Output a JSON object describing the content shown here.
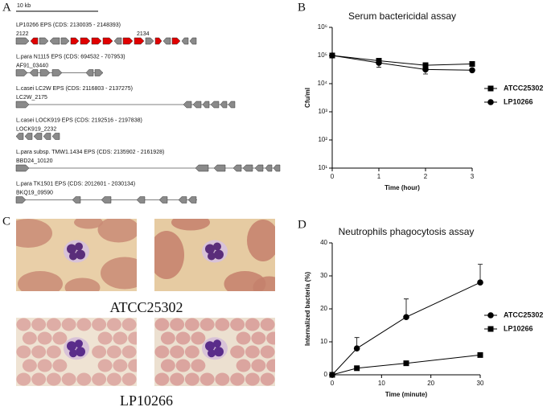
{
  "panels": {
    "a": {
      "label": "A",
      "scale": "10 kb",
      "clusters": [
        {
          "title": "LP10266 EPS (CDS: 2130035 - 2148393)",
          "loci": [
            "2122",
            "2134"
          ]
        },
        {
          "title": "L.para N1115 EPS (CDS: 694532 - 707953)",
          "loci": [
            "AF91_03440"
          ]
        },
        {
          "title": "L.casei LC2W EPS (CDS: 2116803 - 2137275)",
          "loci": [
            "LC2W_2175"
          ]
        },
        {
          "title": "L.casei LOCK919 EPS (CDS: 2192516 - 2197838)",
          "loci": [
            "LOCK919_2232"
          ]
        },
        {
          "title": "L.para subsp. TMW1.1434 EPS (CDS: 2135902 - 2161928)",
          "loci": [
            "BBD24_10120"
          ]
        },
        {
          "title": "L.para TK1501 EPS (CDS: 2012601 - 2030134)",
          "loci": [
            "BKQ19_09590"
          ]
        }
      ]
    },
    "b": {
      "label": "B"
    },
    "c": {
      "label": "C",
      "captions": [
        "ATCC25302",
        "LP10266"
      ]
    },
    "d": {
      "label": "D"
    }
  },
  "chart_data": [
    {
      "type": "line",
      "title": "Serum bactericidal assay",
      "x_label": "Time (hour)",
      "y_label": "Cfu/ml",
      "yscale": "log",
      "x": [
        0,
        1,
        2,
        3
      ],
      "xlim": [
        0,
        3
      ],
      "xticks": [
        0,
        1,
        2,
        3
      ],
      "ylim": [
        10,
        1000000
      ],
      "yticks": [
        {
          "value": 10,
          "label": "10¹"
        },
        {
          "value": 100,
          "label": "10²"
        },
        {
          "value": 1000,
          "label": "10³"
        },
        {
          "value": 10000,
          "label": "10⁴"
        },
        {
          "value": 100000,
          "label": "10⁵"
        },
        {
          "value": 1000000,
          "label": "10⁶"
        }
      ],
      "legend": "right",
      "series": [
        {
          "name": "ATCC25302",
          "color": "#000000",
          "marker": "square",
          "values": [
            100000,
            65000,
            45000,
            50000
          ],
          "errors": [
            0,
            8000,
            10000,
            3000
          ]
        },
        {
          "name": "LP10266",
          "color": "#000000",
          "marker": "circle",
          "values": [
            100000,
            55000,
            32000,
            30000
          ],
          "errors": [
            0,
            17000,
            10000,
            4000
          ]
        }
      ]
    },
    {
      "type": "line",
      "title": "Neutrophils phagocytosis assay",
      "x_label": "Time (minute)",
      "y_label": "Internalized bacteria (%)",
      "x": [
        0,
        5,
        15,
        30
      ],
      "xlim": [
        0,
        30
      ],
      "xticks": [
        0,
        10,
        20,
        30
      ],
      "ylim": [
        0,
        40
      ],
      "yticks": [
        0,
        10,
        20,
        30,
        40
      ],
      "legend": "right",
      "series": [
        {
          "name": "ATCC25302",
          "color": "#000000",
          "marker": "circle",
          "values": [
            0,
            8,
            17.5,
            28
          ],
          "errors": [
            0,
            3.3,
            5.5,
            5.5
          ]
        },
        {
          "name": "LP10266",
          "color": "#000000",
          "marker": "square",
          "values": [
            0,
            2,
            3.5,
            6
          ],
          "errors": [
            0,
            0.3,
            0.3,
            0.3
          ]
        }
      ]
    }
  ]
}
